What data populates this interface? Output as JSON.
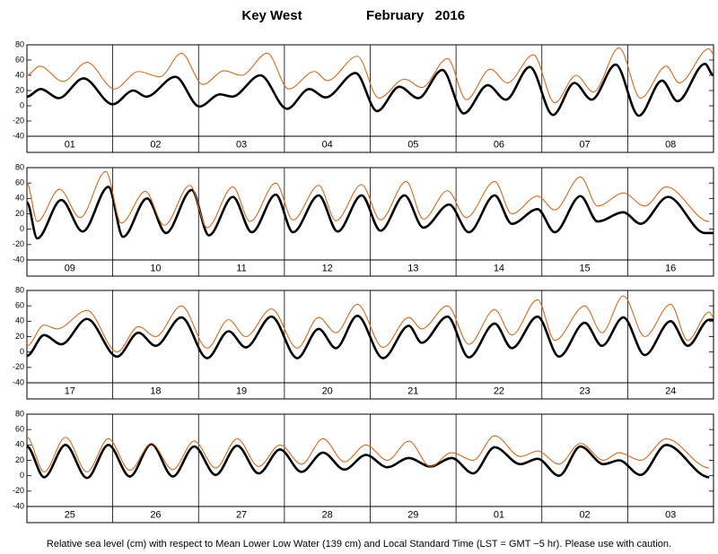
{
  "title": "Key West",
  "period": "February   2016",
  "note": "Relative sea level (cm) with respect to Mean Lower Low Water (139 cm) and Local Standard Time (LST = GMT −5 hr). Please use with caution.",
  "chart_data": [
    {
      "type": "line",
      "categories": [
        "01",
        "02",
        "03",
        "04",
        "05",
        "06",
        "07",
        "08"
      ],
      "xlim": [
        0,
        8
      ],
      "xticks": [
        0,
        1,
        2,
        3,
        4,
        5,
        6,
        7,
        8
      ],
      "ylim": [
        -40,
        80
      ],
      "yticks": [
        -40,
        -20,
        0,
        20,
        40,
        60,
        80
      ],
      "series": [
        {
          "color": "#000000",
          "width": 2.6,
          "x": [
            0,
            0.16,
            0.37,
            0.66,
            1.0,
            1.24,
            1.39,
            1.73,
            2.01,
            2.25,
            2.39,
            2.72,
            3.03,
            3.29,
            3.48,
            3.83,
            4.08,
            4.34,
            4.56,
            4.84,
            5.09,
            5.37,
            5.58,
            5.86,
            6.13,
            6.38,
            6.58,
            6.86,
            7.13,
            7.4,
            7.58,
            7.9,
            8
          ],
          "values": [
            12,
            22,
            10,
            36,
            2,
            20,
            12,
            38,
            -1,
            15,
            12,
            40,
            -4,
            22,
            11,
            43,
            -7,
            25,
            10,
            47,
            -10,
            27,
            8,
            51,
            -12,
            30,
            8,
            54,
            -13,
            33,
            6,
            55,
            40
          ]
        },
        {
          "color": "#d2691e",
          "width": 1.1,
          "x": [
            0,
            0.15,
            0.42,
            0.7,
            1.02,
            1.3,
            1.55,
            1.8,
            2.05,
            2.3,
            2.5,
            2.8,
            3.05,
            3.35,
            3.5,
            3.85,
            4.1,
            4.4,
            4.6,
            4.9,
            5.12,
            5.4,
            5.6,
            5.9,
            6.15,
            6.4,
            6.6,
            6.9,
            7.15,
            7.45,
            7.6,
            7.95,
            8
          ],
          "values": [
            40,
            52,
            32,
            57,
            22,
            45,
            38,
            69,
            28,
            46,
            40,
            69,
            22,
            45,
            33,
            65,
            10,
            35,
            24,
            62,
            8,
            48,
            30,
            67,
            4,
            40,
            18,
            76,
            10,
            52,
            30,
            75,
            68
          ]
        }
      ]
    },
    {
      "type": "line",
      "categories": [
        "09",
        "10",
        "11",
        "12",
        "13",
        "14",
        "15",
        "16"
      ],
      "xlim": [
        0,
        8
      ],
      "xticks": [
        0,
        1,
        2,
        3,
        4,
        5,
        6,
        7,
        8
      ],
      "ylim": [
        -40,
        80
      ],
      "yticks": [
        -40,
        -20,
        0,
        20,
        40,
        60,
        80
      ],
      "series": [
        {
          "color": "#000000",
          "width": 2.6,
          "x": [
            0,
            0.12,
            0.4,
            0.65,
            0.95,
            1.12,
            1.4,
            1.62,
            1.92,
            2.12,
            2.4,
            2.62,
            2.9,
            3.1,
            3.4,
            3.62,
            3.9,
            4.12,
            4.4,
            4.62,
            4.92,
            5.15,
            5.45,
            5.65,
            5.95,
            6.15,
            6.45,
            6.65,
            6.95,
            7.15,
            7.47,
            7.9,
            8
          ],
          "values": [
            35,
            -12,
            38,
            -3,
            55,
            -10,
            40,
            -5,
            51,
            -8,
            42,
            -4,
            45,
            -4,
            44,
            -3,
            44,
            -2,
            44,
            2,
            32,
            -4,
            44,
            7,
            26,
            -4,
            43,
            10,
            22,
            7,
            42,
            -5,
            -5
          ]
        },
        {
          "color": "#d2691e",
          "width": 1.1,
          "x": [
            0,
            0.12,
            0.38,
            0.62,
            0.92,
            1.1,
            1.38,
            1.6,
            1.9,
            2.1,
            2.4,
            2.6,
            2.9,
            3.1,
            3.4,
            3.6,
            3.9,
            4.12,
            4.42,
            4.62,
            4.9,
            5.12,
            5.45,
            5.65,
            5.95,
            6.15,
            6.45,
            6.65,
            6.95,
            7.2,
            7.45,
            7.95
          ],
          "values": [
            60,
            10,
            52,
            15,
            75,
            8,
            49,
            5,
            57,
            2,
            55,
            10,
            60,
            12,
            57,
            11,
            58,
            12,
            62,
            13,
            50,
            15,
            62,
            20,
            43,
            25,
            68,
            30,
            47,
            30,
            55,
            10
          ]
        }
      ]
    },
    {
      "type": "line",
      "categories": [
        "17",
        "18",
        "19",
        "20",
        "21",
        "22",
        "23",
        "24"
      ],
      "xlim": [
        0,
        8
      ],
      "xticks": [
        0,
        1,
        2,
        3,
        4,
        5,
        6,
        7,
        8
      ],
      "ylim": [
        -40,
        80
      ],
      "yticks": [
        -40,
        -20,
        0,
        20,
        40,
        60,
        80
      ],
      "series": [
        {
          "color": "#000000",
          "width": 2.6,
          "x": [
            0,
            0.2,
            0.4,
            0.7,
            1.05,
            1.3,
            1.5,
            1.8,
            2.1,
            2.35,
            2.55,
            2.85,
            3.15,
            3.4,
            3.6,
            3.85,
            4.15,
            4.45,
            4.6,
            4.9,
            5.15,
            5.45,
            5.65,
            5.95,
            6.2,
            6.5,
            6.7,
            6.95,
            7.2,
            7.5,
            7.7,
            7.95,
            8
          ],
          "values": [
            -5,
            22,
            10,
            43,
            -6,
            25,
            8,
            45,
            -8,
            27,
            6,
            46,
            -8,
            30,
            5,
            47,
            -8,
            34,
            12,
            46,
            -7,
            37,
            5,
            46,
            -6,
            38,
            8,
            45,
            -4,
            40,
            8,
            42,
            42
          ]
        },
        {
          "color": "#d2691e",
          "width": 1.1,
          "x": [
            0,
            0.2,
            0.35,
            0.7,
            1.05,
            1.3,
            1.5,
            1.8,
            2.1,
            2.35,
            2.55,
            2.85,
            3.15,
            3.4,
            3.6,
            3.85,
            4.15,
            4.45,
            4.6,
            4.9,
            5.15,
            5.45,
            5.65,
            5.95,
            6.15,
            6.5,
            6.7,
            6.95,
            7.2,
            7.5,
            7.7,
            7.95,
            8
          ],
          "values": [
            8,
            35,
            30,
            54,
            0,
            33,
            20,
            60,
            5,
            42,
            20,
            56,
            5,
            45,
            25,
            62,
            6,
            45,
            30,
            60,
            10,
            55,
            22,
            68,
            15,
            60,
            25,
            73,
            20,
            62,
            15,
            52,
            45
          ]
        }
      ]
    },
    {
      "type": "line",
      "categories": [
        "25",
        "26",
        "27",
        "28",
        "29",
        "01",
        "02",
        "03"
      ],
      "xlim": [
        0,
        8
      ],
      "xticks": [
        0,
        1,
        2,
        3,
        4,
        5,
        6,
        7,
        8
      ],
      "ylim": [
        -40,
        80
      ],
      "yticks": [
        -40,
        -20,
        0,
        20,
        40,
        60,
        80
      ],
      "series": [
        {
          "color": "#000000",
          "width": 2.6,
          "x": [
            0,
            0.2,
            0.45,
            0.7,
            0.95,
            1.2,
            1.45,
            1.7,
            1.95,
            2.2,
            2.45,
            2.7,
            2.95,
            3.2,
            3.45,
            3.7,
            3.95,
            4.2,
            4.45,
            4.7,
            4.95,
            5.2,
            5.45,
            5.75,
            5.95,
            6.2,
            6.45,
            6.72,
            6.9,
            7.15,
            7.45,
            7.95
          ],
          "values": [
            38,
            -2,
            40,
            -3,
            40,
            -1,
            41,
            -1,
            38,
            1,
            39,
            3,
            34,
            5,
            30,
            8,
            27,
            11,
            23,
            12,
            23,
            3,
            37,
            15,
            22,
            0,
            38,
            15,
            20,
            1,
            40,
            -2
          ]
        },
        {
          "color": "#d2691e",
          "width": 1.1,
          "x": [
            0,
            0.2,
            0.45,
            0.7,
            0.95,
            1.2,
            1.45,
            1.7,
            1.95,
            2.2,
            2.45,
            2.7,
            2.95,
            3.2,
            3.45,
            3.7,
            3.95,
            4.2,
            4.45,
            4.7,
            4.95,
            5.2,
            5.45,
            5.75,
            5.95,
            6.2,
            6.45,
            6.72,
            6.9,
            7.15,
            7.45,
            7.95
          ],
          "values": [
            50,
            5,
            50,
            5,
            48,
            7,
            42,
            8,
            45,
            10,
            48,
            12,
            40,
            15,
            48,
            18,
            40,
            20,
            45,
            12,
            30,
            20,
            52,
            25,
            32,
            15,
            42,
            20,
            30,
            20,
            48,
            10
          ]
        }
      ]
    }
  ]
}
